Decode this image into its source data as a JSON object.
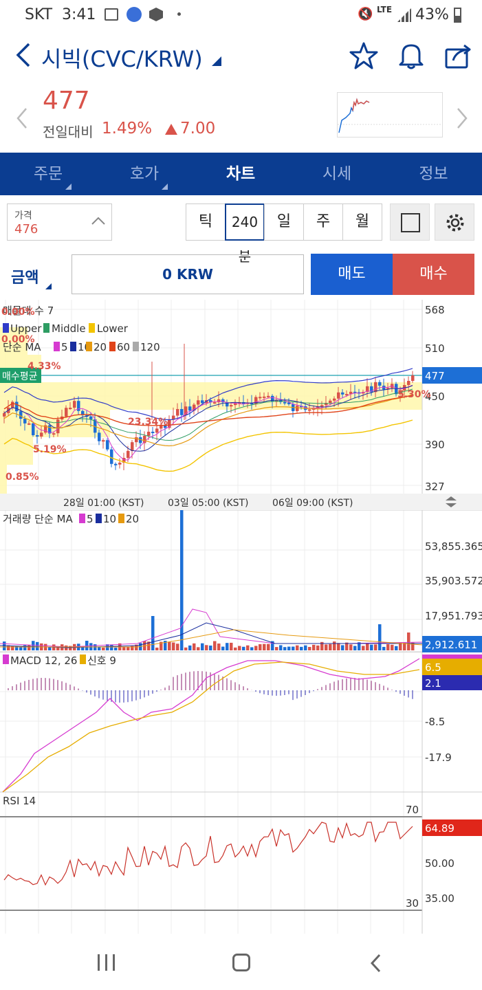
{
  "status": {
    "carrier": "SKT",
    "time": "3:41",
    "net": "LTE",
    "battery": "43%"
  },
  "header": {
    "title": "시빅(CVC/KRW)"
  },
  "price": {
    "current": "477",
    "compare_label": "전일대비",
    "rate": "1.49%",
    "change": "7.00"
  },
  "tabs": [
    {
      "label": "주문"
    },
    {
      "label": "호가"
    },
    {
      "label": "차트"
    },
    {
      "label": "시세"
    },
    {
      "label": "정보"
    }
  ],
  "toolbar": {
    "price_label": "가격",
    "price_value": "476",
    "periods": [
      "틱",
      "240분",
      "일",
      "주",
      "월"
    ],
    "selected_period": "240분"
  },
  "order": {
    "type_label": "금액",
    "amount": "0 KRW",
    "sell_label": "매도",
    "buy_label": "매수"
  },
  "colors": {
    "up": "#d9534a",
    "down": "#1d6fd6",
    "navy": "#0b3d91",
    "sell": "#1a5fd0",
    "buy": "#d9534a"
  },
  "chart": {
    "legend_top": "매물대 수 7",
    "bb": {
      "upper": "Upper",
      "middle": "Middle",
      "lower": "Lower"
    },
    "ma_label": "단순 MA",
    "ma_periods": [
      "5",
      "10",
      "20",
      "60",
      "120"
    ],
    "avg_buy_label": "매수평균",
    "price_axis": [
      "568",
      "510",
      "477",
      "450",
      "390",
      "327"
    ],
    "annotations": [
      "0.00%",
      "0.00%",
      "4.33%",
      "23.34%",
      "5.19%",
      "0.85%",
      "5.30%"
    ],
    "time_labels": [
      "28일 01:00 (KST)",
      "03일 05:00 (KST)",
      "06일 09:00 (KST)"
    ],
    "volume_label": "거래량 단순 MA",
    "volume_ma": [
      "5",
      "10",
      "20"
    ],
    "volume_axis": [
      "53,855.365",
      "35,903.572",
      "17,951.793",
      "2,912.611"
    ],
    "macd_label": "MACD 12, 26",
    "signal_label": "신호 9",
    "macd_axis": [
      "6.5",
      "2.1",
      "-8.5",
      "-17.9"
    ],
    "rsi_label": "RSI 14",
    "rsi_axis": [
      "70",
      "64.89",
      "50.00",
      "35.00",
      "30"
    ]
  }
}
